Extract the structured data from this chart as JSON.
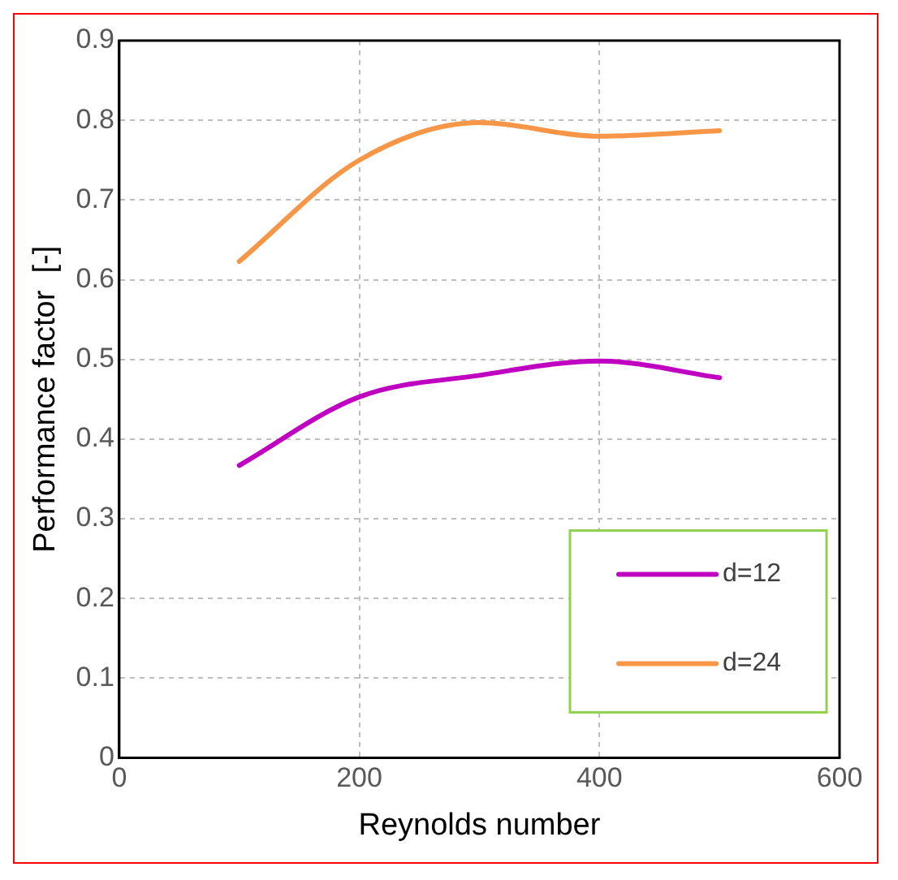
{
  "chart_data": {
    "type": "line",
    "xlabel": "Reynolds number",
    "ylabel": "Performance factor  [-]",
    "x": [
      100,
      200,
      300,
      400,
      500
    ],
    "series": [
      {
        "name": "d=12",
        "color": "#c000c0",
        "values": [
          0.367,
          0.453,
          0.48,
          0.498,
          0.477
        ]
      },
      {
        "name": "d=24",
        "color": "#f79646",
        "values": [
          0.623,
          0.75,
          0.797,
          0.78,
          0.787
        ]
      }
    ],
    "xlim": [
      0,
      600
    ],
    "xticks": [
      0,
      200,
      400,
      600
    ],
    "ylim": [
      0,
      0.9
    ],
    "yticks": [
      0,
      0.1,
      0.2,
      0.3,
      0.4,
      0.5,
      0.6,
      0.7,
      0.8,
      0.9
    ],
    "grid": true,
    "legend": "bottom right",
    "marker": "none",
    "line_style": "solid"
  }
}
